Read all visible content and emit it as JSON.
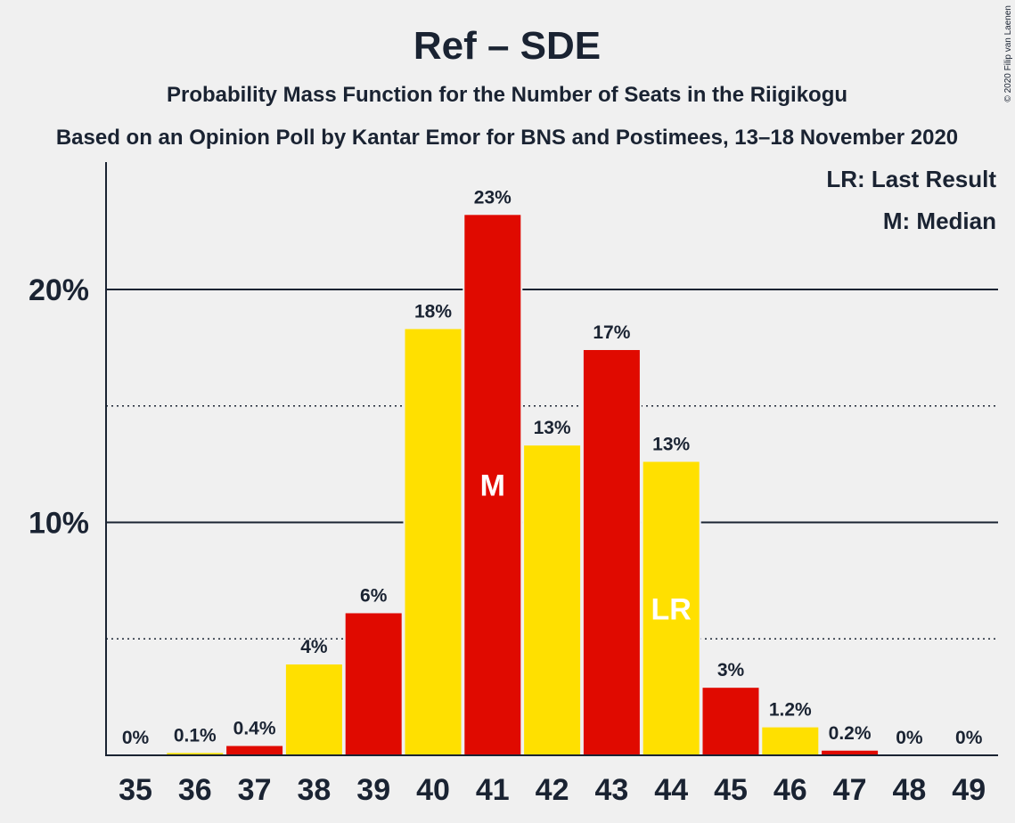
{
  "chart_data": {
    "type": "bar",
    "title": "Ref – SDE",
    "subtitle": "Probability Mass Function for the Number of Seats in the Riigikogu",
    "subtitle2": "Based on an Opinion Poll by Kantar Emor for BNS and Postimees, 13–18 November 2020",
    "copyright": "© 2020 Filip van Laenen",
    "legend": [
      "LR: Last Result",
      "M: Median"
    ],
    "legend_position": "top-right",
    "categories": [
      "35",
      "36",
      "37",
      "38",
      "39",
      "40",
      "41",
      "42",
      "43",
      "44",
      "45",
      "46",
      "47",
      "48",
      "49"
    ],
    "values": [
      0,
      0.1,
      0.4,
      3.9,
      6.1,
      18.3,
      23.2,
      13.3,
      17.4,
      12.6,
      2.9,
      1.2,
      0.2,
      0,
      0
    ],
    "data_labels": [
      "0%",
      "0.1%",
      "0.4%",
      "4%",
      "6%",
      "18%",
      "23%",
      "13%",
      "17%",
      "13%",
      "3%",
      "1.2%",
      "0.2%",
      "0%",
      "0%"
    ],
    "colors": [
      "#e00a00",
      "#ffe000",
      "#e00a00",
      "#ffe000",
      "#e00a00",
      "#ffe000",
      "#e00a00",
      "#ffe000",
      "#e00a00",
      "#ffe000",
      "#e00a00",
      "#ffe000",
      "#e00a00",
      "#ffe000",
      "#e00a00"
    ],
    "markers": {
      "41": "M",
      "44": "LR"
    },
    "yticks": [
      10,
      20
    ],
    "ytick_labels": [
      "10%",
      "20%"
    ],
    "dotted_gridlines": [
      5,
      15
    ],
    "ylim": [
      0,
      25
    ],
    "xlabel": "",
    "ylabel": ""
  }
}
